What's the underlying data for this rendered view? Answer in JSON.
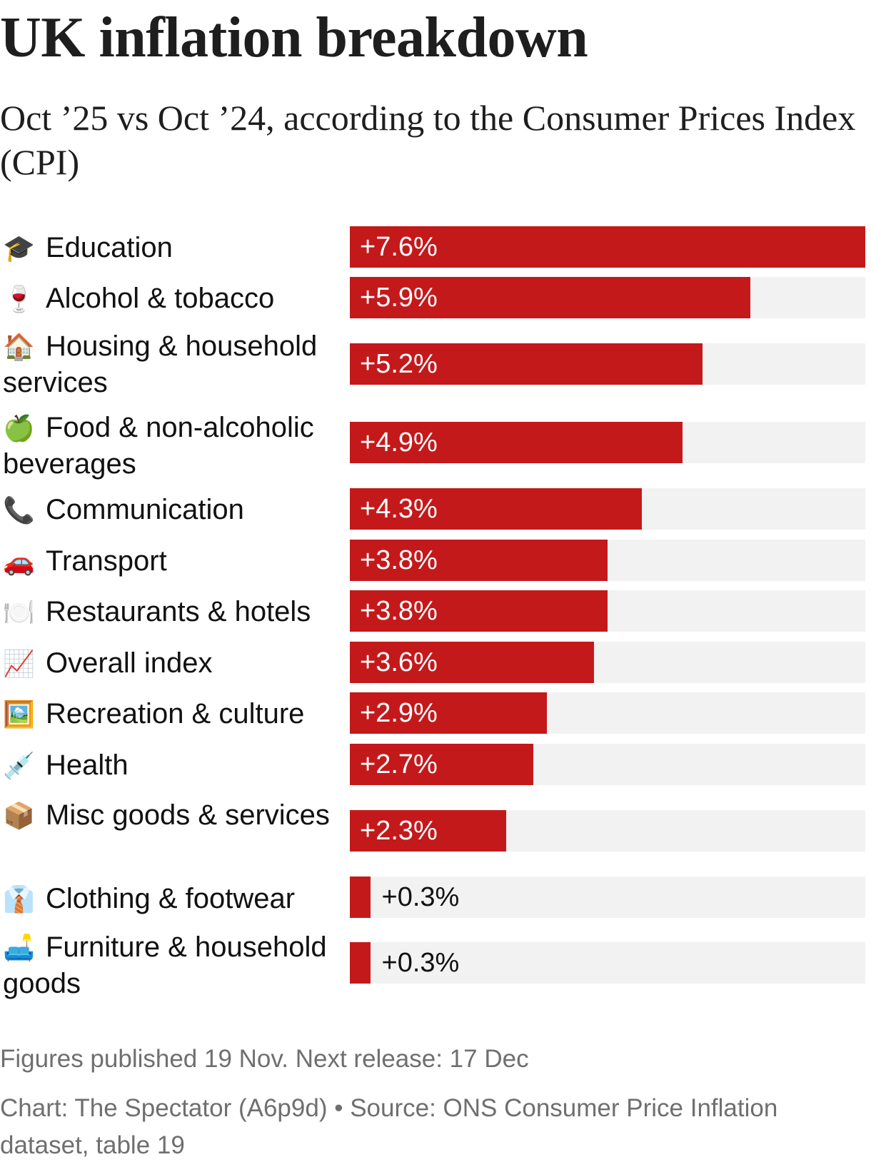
{
  "header": {
    "title": "UK inflation breakdown",
    "subtitle": "Oct ’25 vs Oct ’24, according to the Consumer Prices Index (CPI)"
  },
  "colors": {
    "bar": "#c4191b",
    "track": "#f2f2f2"
  },
  "chart_data": {
    "type": "bar",
    "orientation": "horizontal",
    "title": "UK inflation breakdown",
    "subtitle": "Oct ’25 vs Oct ’24, according to the Consumer Prices Index (CPI)",
    "xlabel": "",
    "ylabel": "",
    "xlim": [
      0,
      7.6
    ],
    "grid": false,
    "categories": [
      "Education",
      "Alcohol & tobacco",
      "Housing & household services",
      "Food & non-alcoholic beverages",
      "Communication",
      "Transport",
      "Restaurants & hotels",
      "Overall index",
      "Recreation & culture",
      "Health",
      "Misc goods & services",
      "Clothing & footwear",
      "Furniture & household goods"
    ],
    "values": [
      7.6,
      5.9,
      5.2,
      4.9,
      4.3,
      3.8,
      3.8,
      3.6,
      2.9,
      2.7,
      2.3,
      0.3,
      0.3
    ],
    "data_labels": [
      "+7.6%",
      "+5.9%",
      "+5.2%",
      "+4.9%",
      "+4.3%",
      "+3.8%",
      "+3.8%",
      "+3.6%",
      "+2.9%",
      "+2.7%",
      "+2.3%",
      "+0.3%",
      "+0.3%"
    ],
    "icons": [
      "🎓",
      "🍷",
      "🏠",
      "🍏",
      "📞",
      "🚗",
      "🍽️",
      "📈",
      "🖼️",
      "💉",
      "📦",
      "👔",
      "🛋️"
    ],
    "icon_names": [
      "graduation-cap-icon",
      "wine-glass-icon",
      "house-icon",
      "apple-icon",
      "telephone-icon",
      "car-icon",
      "plate-cutlery-icon",
      "chart-up-icon",
      "framed-picture-icon",
      "syringe-icon",
      "package-icon",
      "necktie-icon",
      "couch-lamp-icon"
    ]
  },
  "footer": {
    "note": "Figures published 19 Nov. Next release: 17 Dec",
    "source": "Chart: The Spectator (A6p9d) • Source: ONS Consumer Price Inflation dataset, table 19"
  }
}
